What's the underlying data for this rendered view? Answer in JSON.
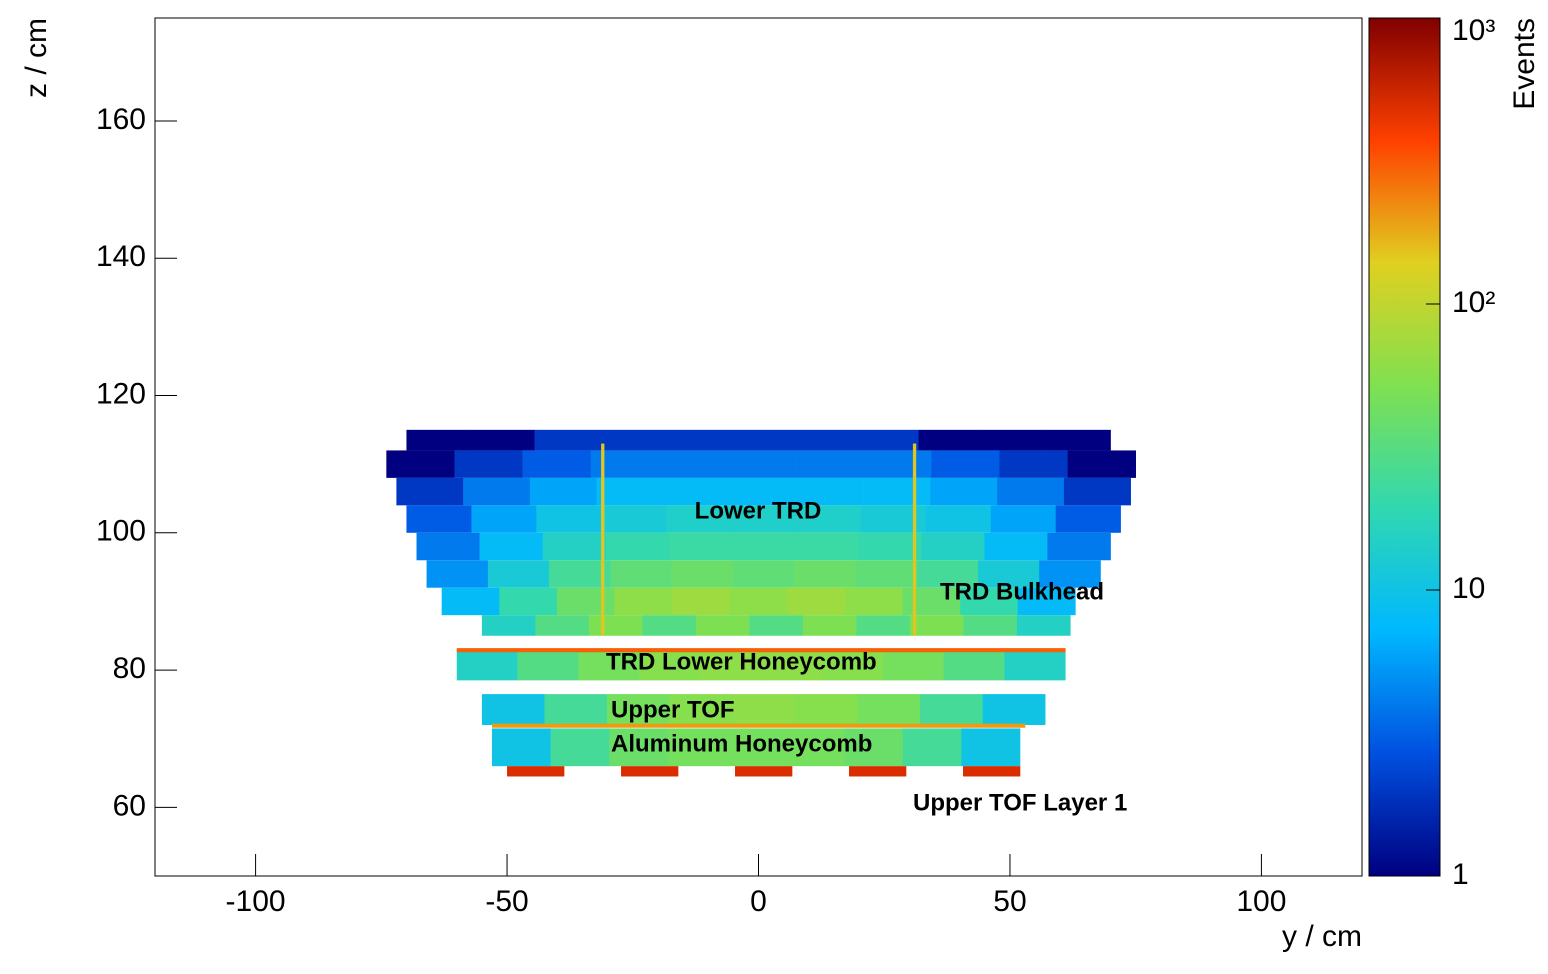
{
  "chart_data": {
    "type": "heatmap",
    "xlabel": "y / cm",
    "ylabel": "z / cm",
    "xlim": [
      -120,
      120
    ],
    "ylim": [
      50,
      175
    ],
    "xticks": [
      -100,
      -50,
      0,
      50,
      100
    ],
    "yticks": [
      60,
      80,
      100,
      120,
      140,
      160
    ],
    "colorbar": {
      "label": "Events",
      "log": true,
      "lim": [
        1,
        1000
      ],
      "ticks": [
        1,
        10,
        {
          "value": 100,
          "label": "10²"
        },
        {
          "value": 1000,
          "label": "10³"
        }
      ],
      "palette": [
        "#000080",
        "#0050e0",
        "#00b8ff",
        "#30d8b0",
        "#80e050",
        "#e0d020",
        "#ff4000",
        "#800000"
      ]
    },
    "rows": [
      {
        "y": [
          -70,
          70
        ],
        "z": [
          112,
          115
        ],
        "counts": [
          1,
          1,
          2,
          2,
          2,
          2,
          2,
          2,
          1,
          1,
          1
        ]
      },
      {
        "y": [
          -74,
          75
        ],
        "z": [
          108,
          112
        ],
        "counts": [
          1,
          2,
          3,
          4,
          4,
          4,
          4,
          4,
          3,
          2,
          1
        ]
      },
      {
        "y": [
          -72,
          74
        ],
        "z": [
          104,
          108
        ],
        "counts": [
          2,
          4,
          6,
          8,
          8,
          8,
          8,
          8,
          6,
          4,
          2
        ]
      },
      {
        "y": [
          -70,
          72
        ],
        "z": [
          100,
          104
        ],
        "counts": [
          3,
          6,
          10,
          12,
          14,
          14,
          14,
          12,
          10,
          6,
          3
        ]
      },
      {
        "y": [
          -68,
          70
        ],
        "z": [
          96,
          100
        ],
        "counts": [
          4,
          8,
          15,
          20,
          22,
          22,
          22,
          20,
          15,
          8,
          4
        ]
      },
      {
        "y": [
          -66,
          68
        ],
        "z": [
          92,
          96
        ],
        "counts": [
          5,
          12,
          25,
          35,
          40,
          35,
          40,
          35,
          25,
          12,
          5
        ]
      },
      {
        "y": [
          -63,
          63
        ],
        "z": [
          88,
          92
        ],
        "counts": [
          8,
          20,
          40,
          60,
          70,
          60,
          70,
          60,
          40,
          20,
          8
        ]
      },
      {
        "y": [
          -55,
          62
        ],
        "z": [
          85,
          88
        ],
        "counts": [
          15,
          30,
          50,
          30,
          50,
          30,
          50,
          30,
          50,
          30,
          15
        ]
      },
      {
        "y": [
          -31.3,
          -30.7
        ],
        "z": [
          85,
          113
        ],
        "counts": [
          150
        ]
      },
      {
        "y": [
          30.7,
          31.3
        ],
        "z": [
          85,
          113
        ],
        "counts": [
          150
        ]
      },
      {
        "y": [
          -60,
          61
        ],
        "z": [
          78.5,
          83
        ],
        "counts": [
          15,
          30,
          45,
          55,
          60,
          60,
          55,
          45,
          30,
          15
        ]
      },
      {
        "y": [
          -60,
          61
        ],
        "z": [
          82.6,
          83.2
        ],
        "counts": [
          300
        ]
      },
      {
        "y": [
          -55,
          57
        ],
        "z": [
          72,
          76.5
        ],
        "counts": [
          10,
          25,
          45,
          55,
          60,
          55,
          45,
          25,
          10
        ]
      },
      {
        "y": [
          -53,
          53
        ],
        "z": [
          71.6,
          72.2
        ],
        "counts": [
          200
        ]
      },
      {
        "y": [
          -53,
          52
        ],
        "z": [
          66,
          71.5
        ],
        "counts": [
          10,
          25,
          40,
          45,
          45,
          45,
          40,
          25,
          10
        ]
      },
      {
        "y": [
          -50,
          52
        ],
        "z": [
          64.5,
          66
        ],
        "counts": [
          500,
          null,
          500,
          null,
          500,
          null,
          500,
          null,
          500
        ]
      }
    ],
    "annotations": [
      "Lower TRD",
      "TRD Bulkhead",
      "TRD Lower Honeycomb",
      "Upper TOF",
      "Aluminum Honeycomb",
      "Upper TOF Layer 1"
    ]
  }
}
